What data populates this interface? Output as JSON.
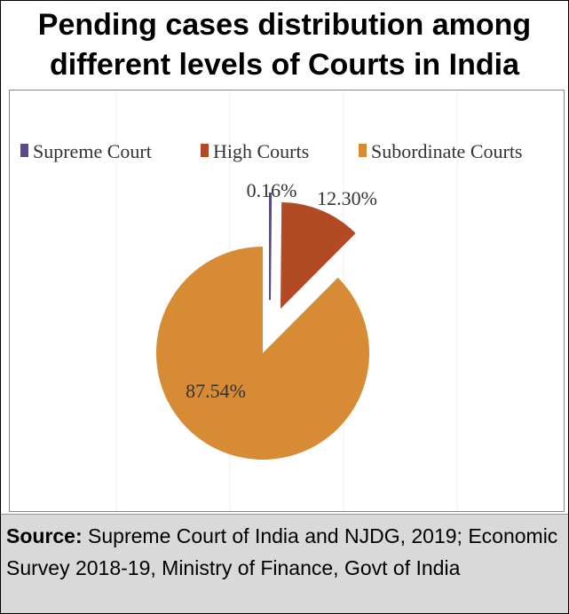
{
  "title": "Pending cases distribution among different levels of Courts in India",
  "source": {
    "label": "Source:",
    "text": " Supreme Court of India and NJDG, 2019; Economic Survey 2018-19, Ministry of Finance, Govt of India"
  },
  "chart_data": {
    "type": "pie",
    "title": "Pending cases distribution among different levels of Courts in India",
    "legend_position": "top",
    "exploded": true,
    "series": [
      {
        "name": "Supreme Court",
        "value": 0.16,
        "label": "0.16%",
        "color": "#5b4a8a"
      },
      {
        "name": "High Courts",
        "value": 12.3,
        "label": "12.30%",
        "color": "#b24a25"
      },
      {
        "name": "Subordinate Courts",
        "value": 87.54,
        "label": "87.54%",
        "color": "#d68b34"
      }
    ]
  }
}
